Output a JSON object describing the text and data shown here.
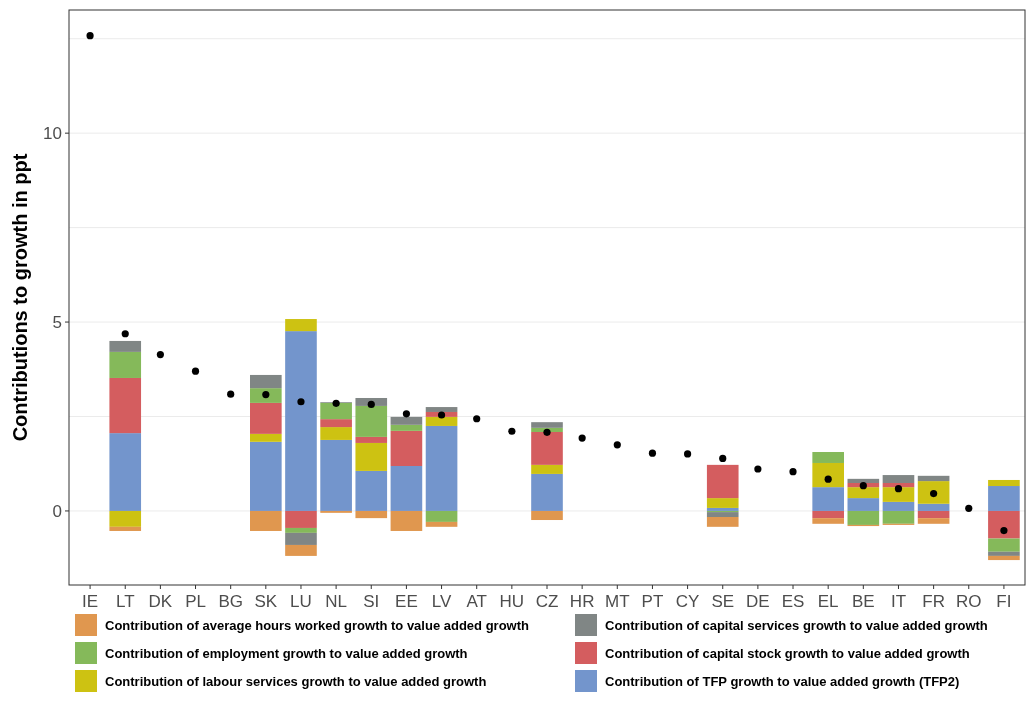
{
  "chart_data": {
    "type": "bar",
    "stacked": true,
    "ylabel": "Contributions to growth in ppt",
    "categories": [
      "IE",
      "LT",
      "DK",
      "PL",
      "BG",
      "SK",
      "LU",
      "NL",
      "SI",
      "EE",
      "LV",
      "AT",
      "HU",
      "CZ",
      "HR",
      "MT",
      "PT",
      "CY",
      "SE",
      "DE",
      "ES",
      "EL",
      "BE",
      "IT",
      "FR",
      "RO",
      "FI"
    ],
    "series": [
      {
        "name": "Contribution of TFP growth to value added growth (TFP2)",
        "color": "#7395cc",
        "values": [
          null,
          2.06,
          null,
          null,
          null,
          1.83,
          4.76,
          1.88,
          1.06,
          1.19,
          2.25,
          null,
          null,
          0.98,
          null,
          null,
          null,
          null,
          0.08,
          null,
          null,
          0.63,
          0.34,
          0.24,
          0.19,
          null,
          0.66
        ]
      },
      {
        "name": "Contribution of labour services growth to value added growth",
        "color": "#cdc212",
        "values": [
          null,
          -0.42,
          null,
          null,
          null,
          0.21,
          0.32,
          0.34,
          0.74,
          null,
          0.24,
          null,
          null,
          0.24,
          null,
          null,
          null,
          null,
          0.26,
          null,
          null,
          0.64,
          0.29,
          0.39,
          0.6,
          null,
          0.16
        ]
      },
      {
        "name": "Contribution of capital stock growth to value added growth",
        "color": "#d45d5f",
        "values": [
          null,
          1.46,
          null,
          null,
          null,
          0.82,
          -0.45,
          0.21,
          0.16,
          0.93,
          0.13,
          null,
          null,
          0.87,
          null,
          null,
          null,
          null,
          0.88,
          null,
          null,
          -0.19,
          0.11,
          0.11,
          -0.19,
          null,
          -0.73
        ]
      },
      {
        "name": "Contribution of employment growth to value added growth",
        "color": "#85b95a",
        "values": [
          null,
          0.69,
          null,
          null,
          null,
          0.39,
          -0.13,
          0.43,
          0.82,
          0.16,
          -0.29,
          null,
          null,
          0.11,
          null,
          null,
          null,
          null,
          -0.03,
          null,
          null,
          0.29,
          -0.37,
          -0.34,
          null,
          null,
          -0.35
        ]
      },
      {
        "name": "Contribution of capital services growth to value added growth",
        "color": "#808685",
        "values": [
          null,
          0.29,
          null,
          null,
          null,
          0.35,
          -0.32,
          0.02,
          0.21,
          0.21,
          0.13,
          null,
          null,
          0.15,
          null,
          null,
          null,
          null,
          -0.13,
          null,
          null,
          null,
          0.11,
          0.21,
          0.14,
          null,
          -0.11
        ]
      },
      {
        "name": "Contribution of average hours worked growth to value added growth",
        "color": "#e0974f",
        "values": [
          null,
          -0.11,
          null,
          null,
          null,
          -0.53,
          -0.29,
          -0.05,
          -0.19,
          -0.53,
          -0.13,
          null,
          null,
          -0.24,
          null,
          null,
          null,
          null,
          -0.26,
          null,
          null,
          -0.15,
          -0.03,
          -0.03,
          -0.15,
          null,
          -0.11
        ]
      },
      {
        "type": "scatter",
        "color": "#000000",
        "marker": "circle",
        "x": [
          "IE",
          "LT",
          "DK",
          "PL",
          "BG",
          "SK",
          "LU",
          "NL",
          "SI",
          "EE",
          "LV",
          "AT",
          "HU",
          "CZ",
          "HR",
          "MT",
          "PT",
          "CY",
          "SE",
          "DE",
          "ES",
          "EL",
          "BE",
          "IT",
          "FR",
          "RO",
          "FI"
        ],
        "values": [
          12.58,
          4.69,
          4.14,
          3.7,
          3.09,
          3.08,
          2.89,
          2.85,
          2.82,
          2.57,
          2.54,
          2.44,
          2.11,
          2.08,
          1.93,
          1.75,
          1.53,
          1.51,
          1.39,
          1.11,
          1.04,
          0.84,
          0.67,
          0.59,
          0.46,
          0.07,
          -0.52
        ]
      }
    ],
    "ylim": [
      -1.96,
      13.26
    ],
    "yticks": [
      0,
      {
        "value": 2.5,
        "label": null
      },
      5,
      {
        "value": 7.5,
        "label": null
      },
      10,
      {
        "value": 12.5,
        "label": null
      }
    ],
    "grid": "y",
    "legend": "bottom"
  }
}
